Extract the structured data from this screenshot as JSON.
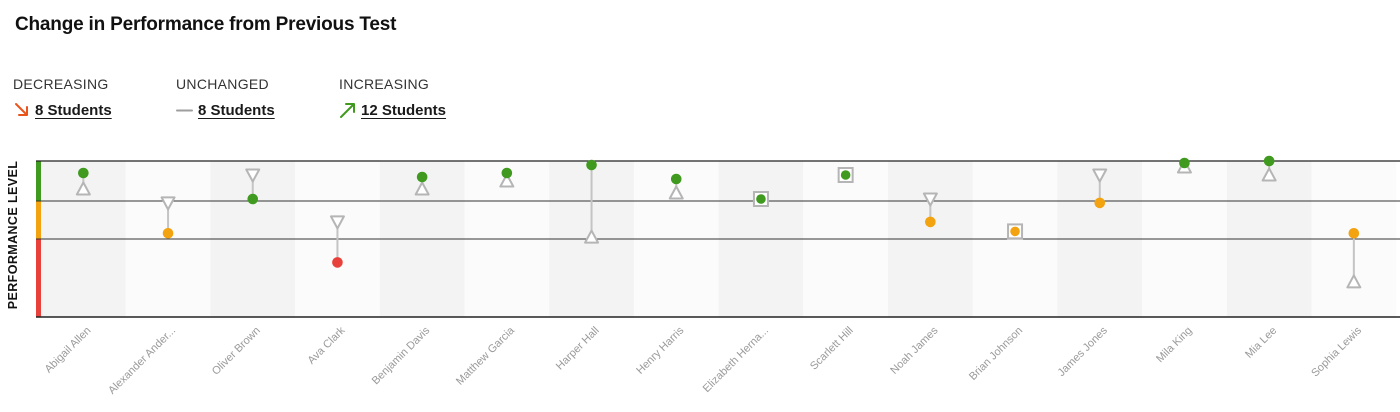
{
  "title": "Change in Performance from Previous Test",
  "summary": {
    "decreasing": {
      "label": "DECREASING",
      "count": "8 Students",
      "color": "#e8541c",
      "icon": "arrow-down-right-icon"
    },
    "unchanged": {
      "label": "UNCHANGED",
      "count": "8 Students",
      "color": "#9e9e9e",
      "icon": "dash-icon"
    },
    "increasing": {
      "label": "INCREASING",
      "count": "12 Students",
      "color": "#3f9a1f",
      "icon": "arrow-up-right-icon"
    }
  },
  "chart_data": {
    "type": "dumbbell",
    "ylabel": "PERFORMANCE LEVEL",
    "level_colors": [
      "#e8403a",
      "#f2a30f",
      "#3f9a1f"
    ],
    "legend": {
      "previous": "triangle-outline",
      "current": "filled-dot",
      "unchanged": "square-outline"
    },
    "y_scale": "three performance bands (0–1 low, 1–2 middle, 2–3 high)",
    "ylim": [
      0,
      3
    ],
    "categories": [
      "Abigail Allen",
      "Alexander Ander...",
      "Oliver Brown",
      "Ava Clark",
      "Benjamin Davis",
      "Matthew Garcia",
      "Harper Hall",
      "Henry Harris",
      "Elizabeth Herna...",
      "Scarlett Hill",
      "Noah James",
      "Brian Johnson",
      "James Jones",
      "Mila King",
      "Mia Lee",
      "Sophia Lewis"
    ],
    "series": [
      {
        "name": "previous",
        "values": [
          2.3,
          1.95,
          2.65,
          1.45,
          2.3,
          2.5,
          1.05,
          2.2,
          2.05,
          2.65,
          2.05,
          1.2,
          2.65,
          2.85,
          2.65,
          0.45
        ]
      },
      {
        "name": "current",
        "values": [
          2.7,
          1.15,
          2.05,
          0.7,
          2.6,
          2.7,
          2.9,
          2.55,
          2.05,
          2.65,
          1.45,
          1.2,
          1.95,
          2.95,
          3.0,
          1.15
        ]
      }
    ]
  }
}
